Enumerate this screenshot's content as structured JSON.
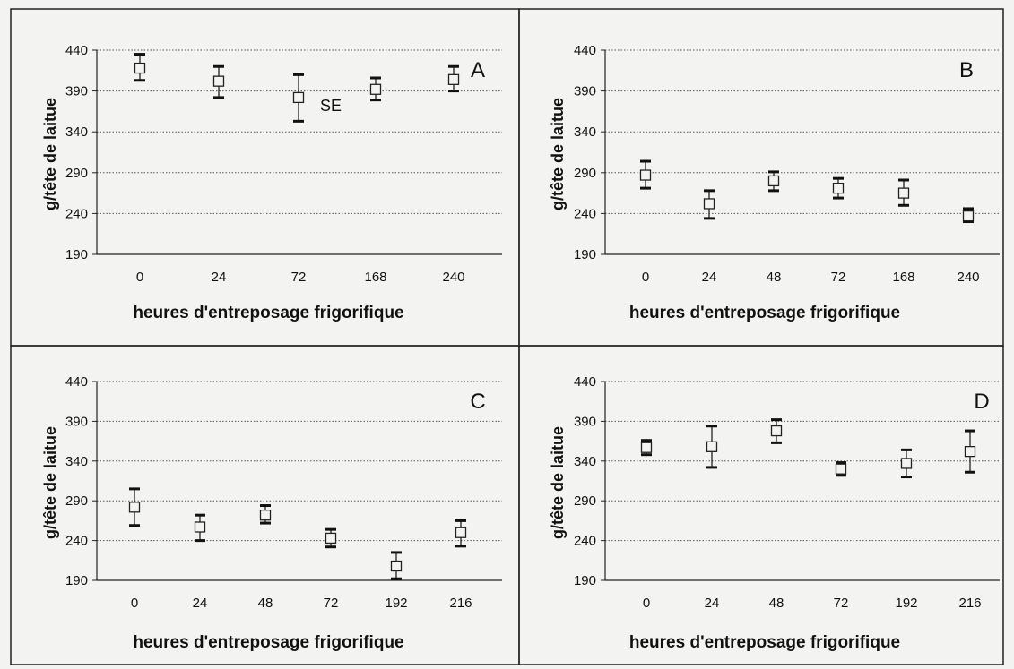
{
  "chart_data": [
    {
      "type": "scatter",
      "panel_label": "A",
      "categories": [
        "0",
        "24",
        "72",
        "168",
        "240"
      ],
      "series": [
        {
          "values": [
            418,
            402,
            382,
            392,
            404
          ],
          "se_low": [
            403,
            382,
            353,
            379,
            390
          ],
          "se_high": [
            435,
            420,
            410,
            406,
            420
          ]
        }
      ],
      "annotation": "SE",
      "xlabel": "heures d'entreposage frigorifique",
      "ylabel": "g/tête de laitue",
      "yticks": [
        190,
        240,
        290,
        340,
        390,
        440
      ],
      "ylim": [
        190,
        440
      ],
      "grid": true
    },
    {
      "type": "scatter",
      "panel_label": "B",
      "categories": [
        "0",
        "24",
        "48",
        "72",
        "168",
        "240"
      ],
      "series": [
        {
          "values": [
            287,
            252,
            280,
            271,
            265,
            237
          ],
          "se_low": [
            271,
            234,
            268,
            259,
            250,
            230
          ],
          "se_high": [
            304,
            268,
            291,
            283,
            281,
            246
          ]
        }
      ],
      "xlabel": "heures d'entreposage frigorifique",
      "ylabel": "g/tête de laitue",
      "yticks": [
        190,
        240,
        290,
        340,
        390,
        440
      ],
      "ylim": [
        190,
        440
      ],
      "grid": true
    },
    {
      "type": "scatter",
      "panel_label": "C",
      "categories": [
        "0",
        "24",
        "48",
        "72",
        "192",
        "216"
      ],
      "series": [
        {
          "values": [
            282,
            257,
            272,
            243,
            208,
            250
          ],
          "se_low": [
            259,
            240,
            262,
            232,
            192,
            233
          ],
          "se_high": [
            305,
            272,
            284,
            254,
            225,
            265
          ]
        }
      ],
      "xlabel": "heures d'entreposage frigorifique",
      "ylabel": "g/tête de laitue",
      "yticks": [
        190,
        240,
        290,
        340,
        390,
        440
      ],
      "ylim": [
        190,
        440
      ],
      "grid": true
    },
    {
      "type": "scatter",
      "panel_label": "D",
      "categories": [
        "0",
        "24",
        "48",
        "72",
        "192",
        "216"
      ],
      "series": [
        {
          "values": [
            357,
            358,
            378,
            330,
            337,
            352
          ],
          "se_low": [
            348,
            332,
            363,
            322,
            320,
            326
          ],
          "se_high": [
            366,
            384,
            392,
            338,
            354,
            378
          ]
        }
      ],
      "xlabel": "heures d'entreposage frigorifique",
      "ylabel": "g/tête de laitue",
      "yticks": [
        190,
        240,
        290,
        340,
        390,
        440
      ],
      "ylim": [
        190,
        440
      ],
      "grid": true
    }
  ]
}
